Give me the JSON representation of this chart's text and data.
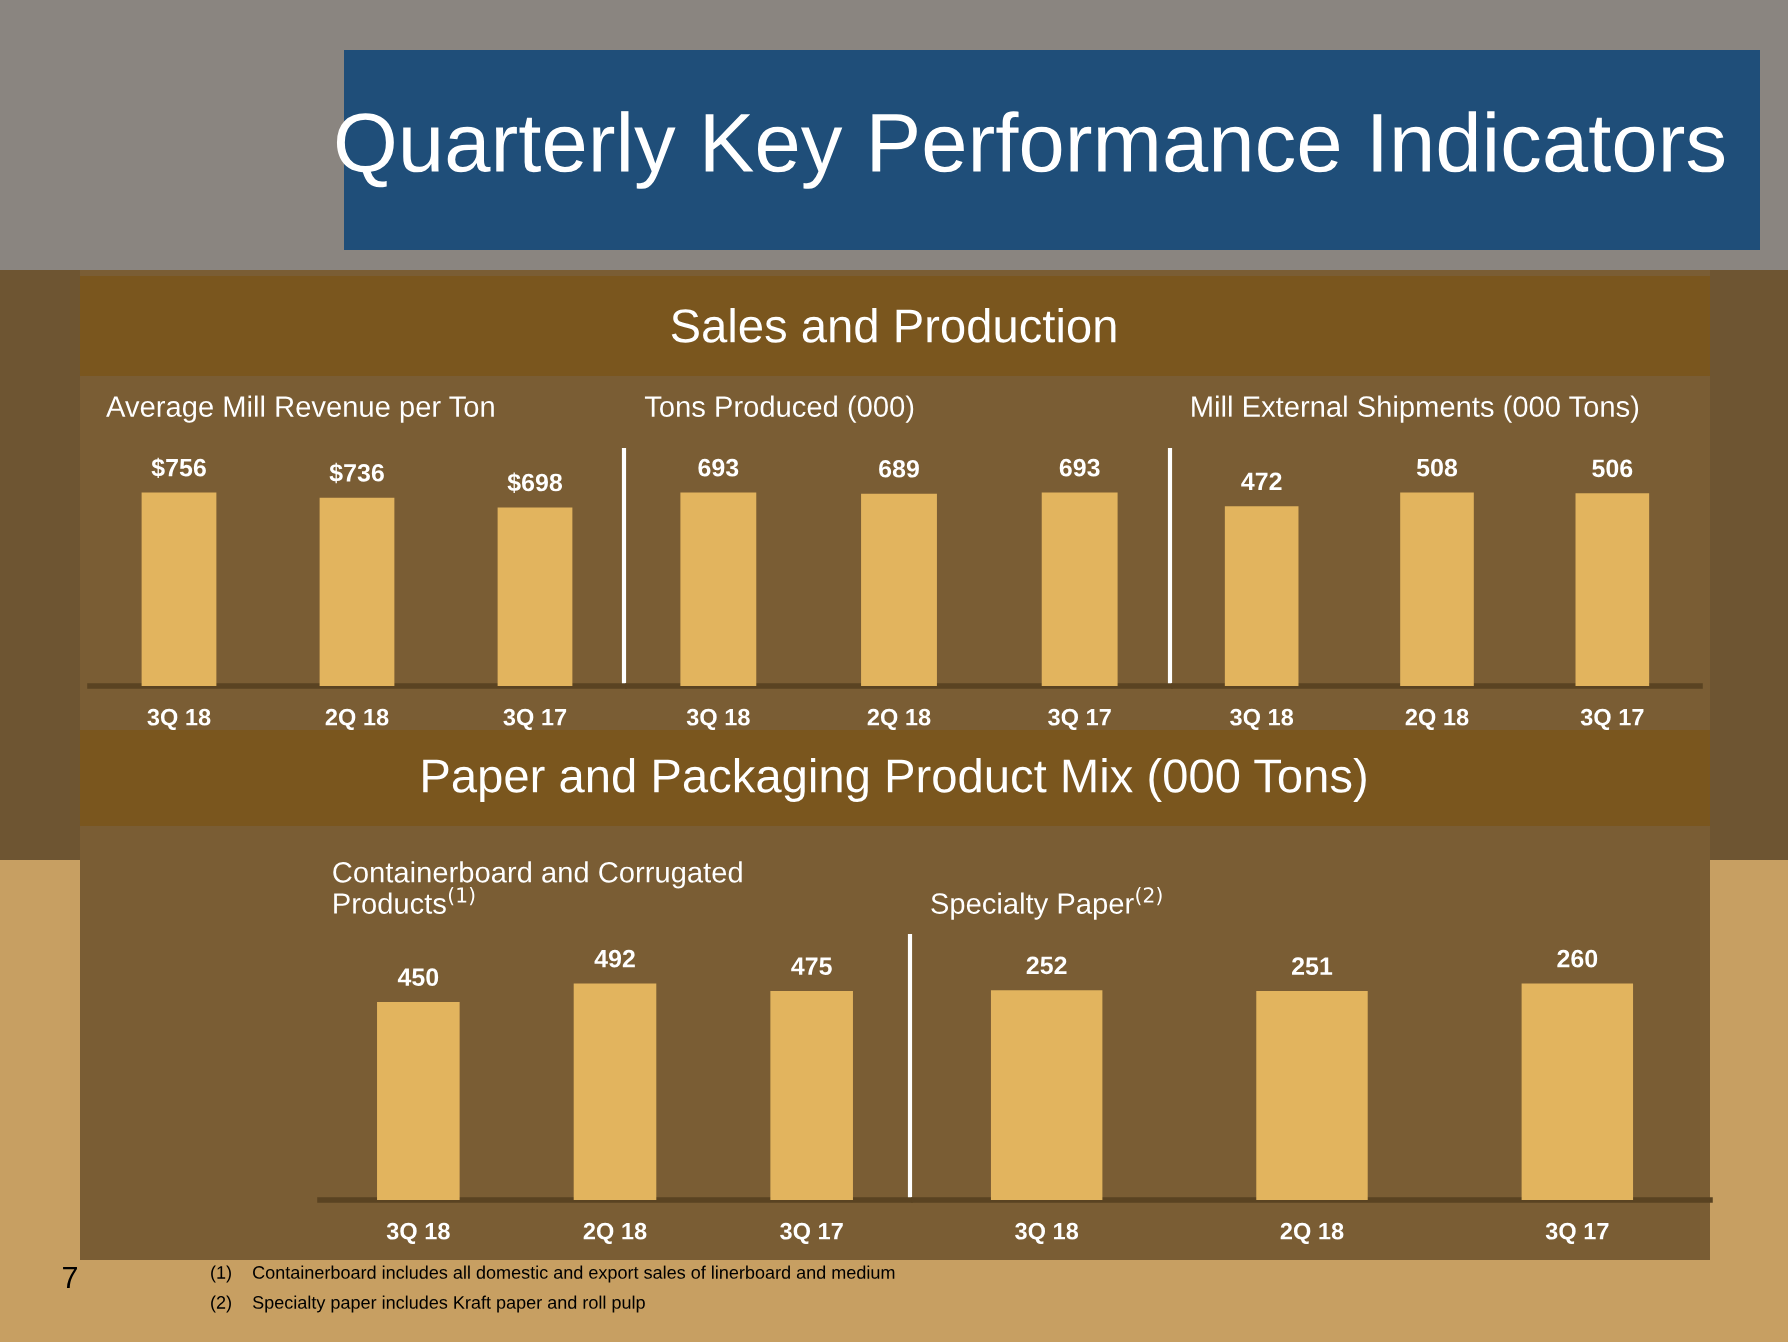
{
  "chart_data": [
    {
      "type": "bar",
      "title": "Average Mill Revenue per Ton",
      "categories": [
        "3Q 18",
        "2Q 18",
        "3Q 17"
      ],
      "values": [
        756,
        736,
        698
      ],
      "value_labels": [
        "$756",
        "$736",
        "$698"
      ],
      "color": "#e2b45e",
      "tick_labels": "x",
      "annotations": [
        "Quarterly Key Performance Indicators",
        "Sales and Production"
      ]
    },
    {
      "type": "bar",
      "title": "Tons Produced (000)",
      "categories": [
        "3Q 18",
        "2Q 18",
        "3Q 17"
      ],
      "values": [
        693,
        689,
        693
      ],
      "data_labels": true,
      "color": "#e2b45e",
      "tick_labels": "x"
    },
    {
      "type": "bar",
      "title": "Mill External Shipments (000 Tons)",
      "categories": [
        "3Q 18",
        "2Q 18",
        "3Q 17"
      ],
      "values": [
        472,
        508,
        506
      ],
      "data_labels": true,
      "color": "#e2b45e",
      "tick_labels": "x"
    },
    {
      "type": "bar",
      "title": "Containerboard and Corrugated\nProducts$^{(1)}$",
      "categories": [
        "3Q 18",
        "2Q 18",
        "3Q 17"
      ],
      "values": [
        450,
        492,
        475
      ],
      "data_labels": true,
      "color": "#e2b45e",
      "tick_labels": "x",
      "annotations": [
        "Paper and Packaging Product Mix (000 Tons)"
      ]
    },
    {
      "type": "bar",
      "title": "Specialty Paper$^{(2)}$",
      "categories": [
        "3Q 18",
        "2Q 18",
        "3Q 17"
      ],
      "values": [
        252,
        251,
        260
      ],
      "data_labels": true,
      "color": "#e2b45e",
      "tick_labels": "x",
      "annotations": [
        "7",
        "(1)    Containerboard includes all domestic and export sales of linerboard and medium",
        "(2)    Specialty paper includes Kraft paper and roll pulp"
      ]
    }
  ]
}
